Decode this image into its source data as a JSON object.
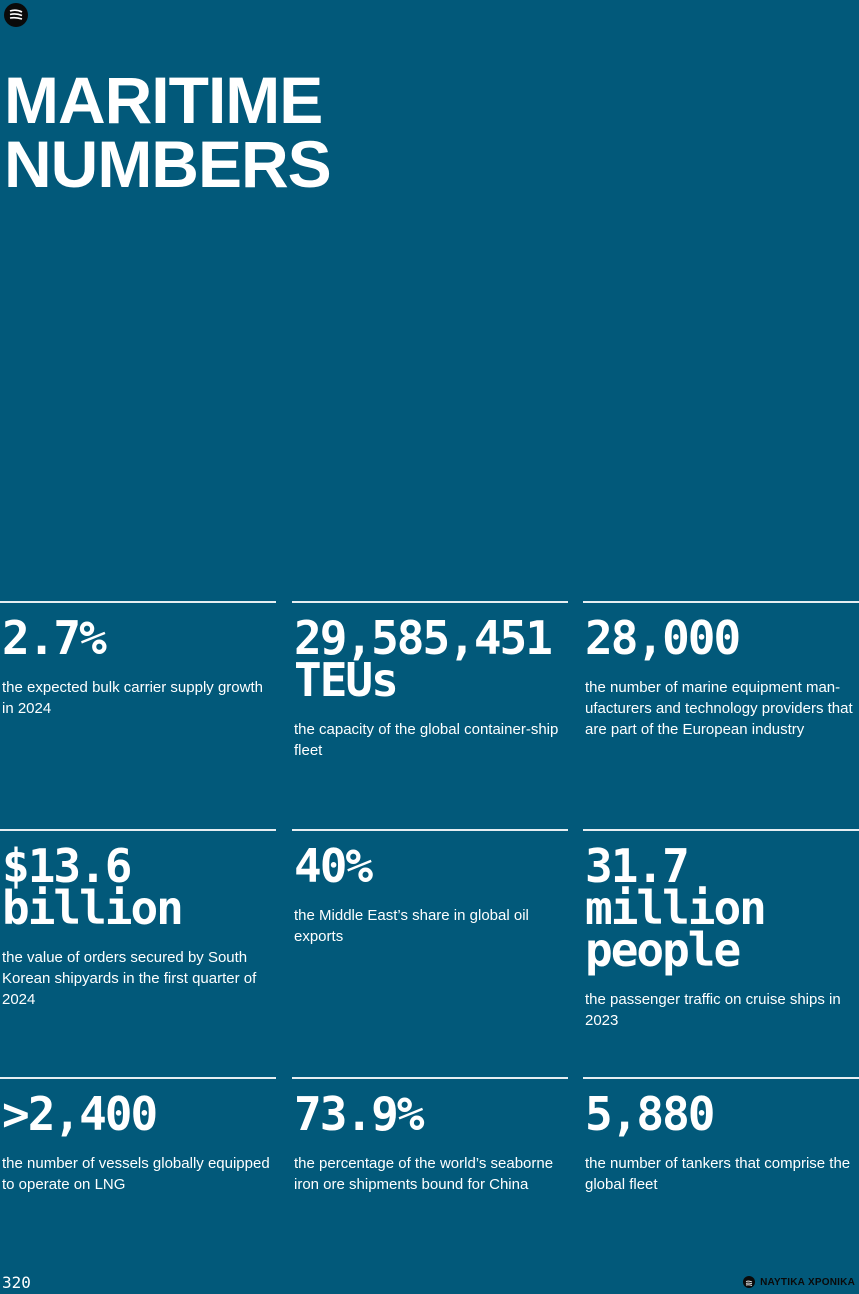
{
  "header": {
    "title_line1": "MARITIME",
    "title_line2": "NUMBERS"
  },
  "stats": [
    {
      "value": "2.7%",
      "description": "the expected bulk carrier supply growth in 2024"
    },
    {
      "value": "29,585,451\nTEUs",
      "description": "the capacity of the global container-ship fleet"
    },
    {
      "value": "28,000",
      "description": "the number of marine equipment man-ufacturers and technology providers that are part of the European industry"
    },
    {
      "value": "$13.6\nbillion",
      "description": "the value of orders secured by South Korean shipyards in the first quarter of 2024"
    },
    {
      "value": "40%",
      "description": "the Middle East’s share in global oil exports"
    },
    {
      "value": "31.7\nmillion\npeople",
      "description": "the passenger traffic on cruise ships in 2023"
    },
    {
      "value": ">2,400",
      "description": "the number of vessels globally equipped to operate on LNG"
    },
    {
      "value": "73.9%",
      "description": "the percentage of the world’s seaborne iron ore shipments bound for China"
    },
    {
      "value": "5,880",
      "description": "the number of tankers that comprise the global fleet"
    }
  ],
  "footer": {
    "page_number": "320",
    "brand": "ΝΑΥΤΙΚΑ ΧΡΟΝΙΚΑ"
  },
  "colors": {
    "background": "#02597a",
    "text": "#ffffff",
    "logo": "#0a0a0a"
  }
}
